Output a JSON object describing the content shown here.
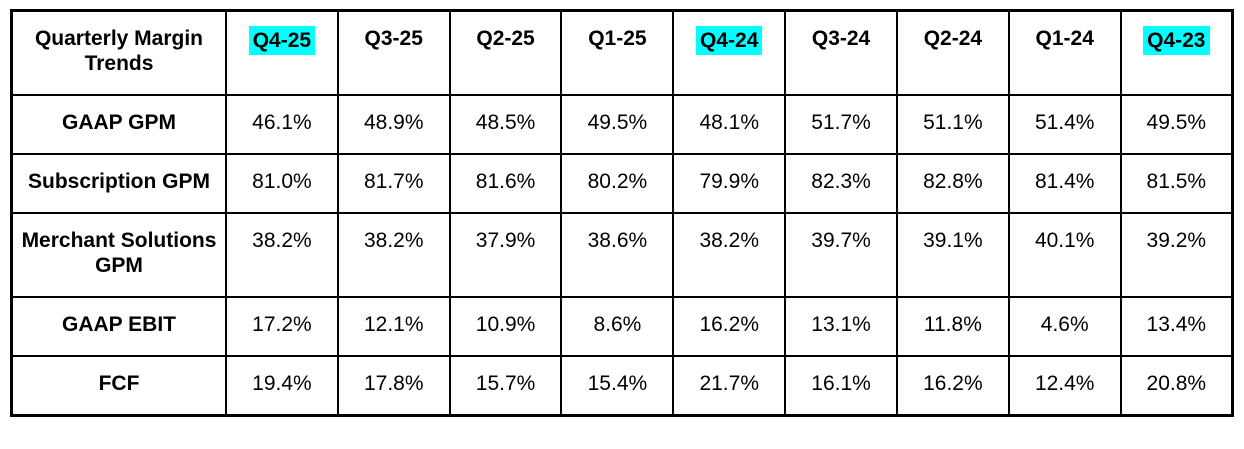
{
  "table": {
    "title_cell": "Quarterly Margin Trends",
    "highlight_color": "#00FFFF",
    "columns": [
      {
        "label": "Q4-25",
        "highlighted": true
      },
      {
        "label": "Q3-25",
        "highlighted": false
      },
      {
        "label": "Q2-25",
        "highlighted": false
      },
      {
        "label": "Q1-25",
        "highlighted": false
      },
      {
        "label": "Q4-24",
        "highlighted": true
      },
      {
        "label": "Q3-24",
        "highlighted": false
      },
      {
        "label": "Q2-24",
        "highlighted": false
      },
      {
        "label": "Q1-24",
        "highlighted": false
      },
      {
        "label": "Q4-23",
        "highlighted": true
      }
    ],
    "rows": [
      {
        "label": "GAAP GPM",
        "values": [
          "46.1%",
          "48.9%",
          "48.5%",
          "49.5%",
          "48.1%",
          "51.7%",
          "51.1%",
          "51.4%",
          "49.5%"
        ]
      },
      {
        "label": "Subscription GPM",
        "values": [
          "81.0%",
          "81.7%",
          "81.6%",
          "80.2%",
          "79.9%",
          "82.3%",
          "82.8%",
          "81.4%",
          "81.5%"
        ]
      },
      {
        "label": "Merchant Solutions GPM",
        "values": [
          "38.2%",
          "38.2%",
          "37.9%",
          "38.6%",
          "38.2%",
          "39.7%",
          "39.1%",
          "40.1%",
          "39.2%"
        ]
      },
      {
        "label": "GAAP EBIT",
        "values": [
          "17.2%",
          "12.1%",
          "10.9%",
          "8.6%",
          "16.2%",
          "13.1%",
          "11.8%",
          "4.6%",
          "13.4%"
        ]
      },
      {
        "label": "FCF",
        "values": [
          "19.4%",
          "17.8%",
          "15.7%",
          "15.4%",
          "21.7%",
          "16.1%",
          "16.2%",
          "12.4%",
          "20.8%"
        ]
      }
    ]
  },
  "chart_data": {
    "type": "table",
    "title": "Quarterly Margin Trends",
    "categories": [
      "Q4-25",
      "Q3-25",
      "Q2-25",
      "Q1-25",
      "Q4-24",
      "Q3-24",
      "Q2-24",
      "Q1-24",
      "Q4-23"
    ],
    "highlighted_categories": [
      "Q4-25",
      "Q4-24",
      "Q4-23"
    ],
    "highlight_color": "#00FFFF",
    "unit": "percent",
    "series": [
      {
        "name": "GAAP GPM",
        "values": [
          46.1,
          48.9,
          48.5,
          49.5,
          48.1,
          51.7,
          51.1,
          51.4,
          49.5
        ]
      },
      {
        "name": "Subscription GPM",
        "values": [
          81.0,
          81.7,
          81.6,
          80.2,
          79.9,
          82.3,
          82.8,
          81.4,
          81.5
        ]
      },
      {
        "name": "Merchant Solutions GPM",
        "values": [
          38.2,
          38.2,
          37.9,
          38.6,
          38.2,
          39.7,
          39.1,
          40.1,
          39.2
        ]
      },
      {
        "name": "GAAP EBIT",
        "values": [
          17.2,
          12.1,
          10.9,
          8.6,
          16.2,
          13.1,
          11.8,
          4.6,
          13.4
        ]
      },
      {
        "name": "FCF",
        "values": [
          19.4,
          17.8,
          15.7,
          15.4,
          21.7,
          16.1,
          16.2,
          12.4,
          20.8
        ]
      }
    ]
  }
}
